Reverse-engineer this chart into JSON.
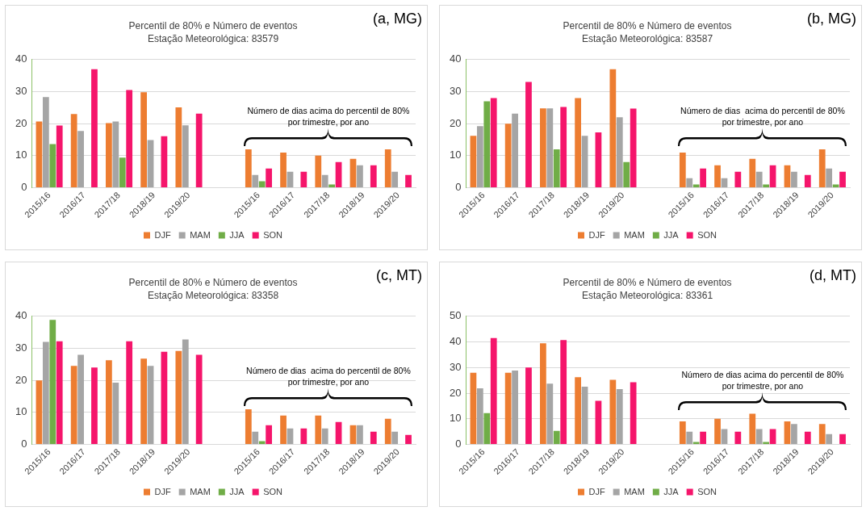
{
  "chart_data": [
    {
      "type": "bar",
      "title": "Percentil de 80% e Número de eventos",
      "subtitle": "Estação Meteorológica: 83579",
      "annotations": [
        "(a, MG)",
        "Número de dias acima do percentil de 80% por trimestre, por ano"
      ],
      "categories": [
        "2015/16",
        "2016/17",
        "2017/18",
        "2018/19",
        "2019/20",
        null,
        "2015/16",
        "2016/17",
        "2017/18",
        "2018/19",
        "2019/20"
      ],
      "series": [
        {
          "name": "DJF",
          "color": "#ed7d31",
          "values": [
            20.7,
            23,
            20.2,
            29.8,
            25.1,
            null,
            12,
            11,
            10,
            9,
            12
          ]
        },
        {
          "name": "MAM",
          "color": "#a5a5a5",
          "values": [
            28.3,
            17.7,
            20.7,
            14.9,
            19.5,
            null,
            4,
            5,
            4,
            7,
            5
          ]
        },
        {
          "name": "JJA",
          "color": "#70ad47",
          "values": [
            13.6,
            null,
            9.4,
            null,
            null,
            null,
            2,
            null,
            1,
            null,
            null
          ]
        },
        {
          "name": "SON",
          "color": "#f5156b",
          "values": [
            19.4,
            37,
            30.5,
            16.1,
            23.1,
            null,
            6,
            5,
            8,
            7,
            4
          ]
        }
      ],
      "ylim": [
        0,
        40
      ],
      "yticks": [
        0,
        10,
        20,
        30,
        40
      ],
      "grid": "y",
      "legend": "bottom"
    },
    {
      "type": "bar",
      "title": "Percentil de 80% e Número de eventos",
      "subtitle": "Estação Meteorológica: 83587",
      "annotations": [
        "(b, MG)",
        "Número de dias  acima do percentil de 80% por trimestre, por ano"
      ],
      "categories": [
        "2015/16",
        "2016/17",
        "2017/18",
        "2018/19",
        "2019/20",
        null,
        "2015/16",
        "2016/17",
        "2017/18",
        "2018/19",
        "2019/20"
      ],
      "series": [
        {
          "name": "DJF",
          "color": "#ed7d31",
          "values": [
            16.2,
            20,
            24.8,
            28,
            37,
            null,
            11,
            7,
            9,
            7,
            12
          ]
        },
        {
          "name": "MAM",
          "color": "#a5a5a5",
          "values": [
            19.2,
            23.1,
            24.8,
            16.2,
            22,
            null,
            3,
            3,
            5,
            5,
            6
          ]
        },
        {
          "name": "JJA",
          "color": "#70ad47",
          "values": [
            27,
            null,
            12,
            null,
            8,
            null,
            1,
            null,
            1,
            null,
            1
          ]
        },
        {
          "name": "SON",
          "color": "#f5156b",
          "values": [
            28,
            33,
            25.2,
            17.3,
            24.7,
            null,
            6,
            5,
            7,
            4,
            5
          ]
        }
      ],
      "ylim": [
        0,
        40
      ],
      "yticks": [
        0,
        10,
        20,
        30,
        40
      ],
      "grid": "y",
      "legend": "bottom"
    },
    {
      "type": "bar",
      "title": "Percentil de 80% e Número de eventos",
      "subtitle": "Estação Meteorológica: 83358",
      "annotations": [
        "(c, MT)",
        "Número de dias  acima do percentil de 80% por trimestre, por ano"
      ],
      "categories": [
        "2015/16",
        "2016/17",
        "2017/18",
        "2018/19",
        "2019/20",
        null,
        "2015/16",
        "2016/17",
        "2017/18",
        "2018/19",
        "2019/20"
      ],
      "series": [
        {
          "name": "DJF",
          "color": "#ed7d31",
          "values": [
            20,
            24.5,
            26.3,
            26.8,
            29.2,
            null,
            11,
            9,
            9,
            6,
            8
          ]
        },
        {
          "name": "MAM",
          "color": "#a5a5a5",
          "values": [
            32,
            28,
            19.3,
            24.5,
            32.8,
            null,
            4,
            5,
            5,
            6,
            4
          ]
        },
        {
          "name": "JJA",
          "color": "#70ad47",
          "values": [
            38.9,
            null,
            null,
            null,
            null,
            null,
            1,
            null,
            null,
            null,
            null
          ]
        },
        {
          "name": "SON",
          "color": "#f5156b",
          "values": [
            32.2,
            24,
            32.2,
            28.9,
            28,
            null,
            6,
            5,
            7,
            4,
            3
          ]
        }
      ],
      "ylim": [
        0,
        40
      ],
      "yticks": [
        0,
        10,
        20,
        30,
        40
      ],
      "grid": "y",
      "legend": "bottom"
    },
    {
      "type": "bar",
      "title": "Percentil de 80% e Número de eventos",
      "subtitle": "Estação Meteorológica: 83361",
      "annotations": [
        "(d, MT)",
        "Número de dias acima do percentil de 80% por trimestre, por ano"
      ],
      "categories": [
        "2015/16",
        "2016/17",
        "2017/18",
        "2018/19",
        "2019/20",
        null,
        "2015/16",
        "2016/17",
        "2017/18",
        "2018/19",
        "2019/20"
      ],
      "series": [
        {
          "name": "DJF",
          "color": "#ed7d31",
          "values": [
            28,
            28,
            39.5,
            26.2,
            25.2,
            null,
            9,
            10,
            12,
            9,
            8
          ]
        },
        {
          "name": "MAM",
          "color": "#a5a5a5",
          "values": [
            21.9,
            28.8,
            23.7,
            22.5,
            21.6,
            null,
            5,
            6,
            6,
            8,
            4
          ]
        },
        {
          "name": "JJA",
          "color": "#70ad47",
          "values": [
            12.2,
            null,
            5.3,
            null,
            null,
            null,
            1,
            null,
            1,
            null,
            null
          ]
        },
        {
          "name": "SON",
          "color": "#f5156b",
          "values": [
            41.5,
            30,
            40.7,
            17,
            24.3,
            null,
            5,
            5,
            6,
            5,
            4
          ]
        }
      ],
      "ylim": [
        0,
        50
      ],
      "yticks": [
        0,
        10,
        20,
        30,
        40,
        50
      ],
      "grid": "y",
      "legend": "bottom"
    }
  ]
}
